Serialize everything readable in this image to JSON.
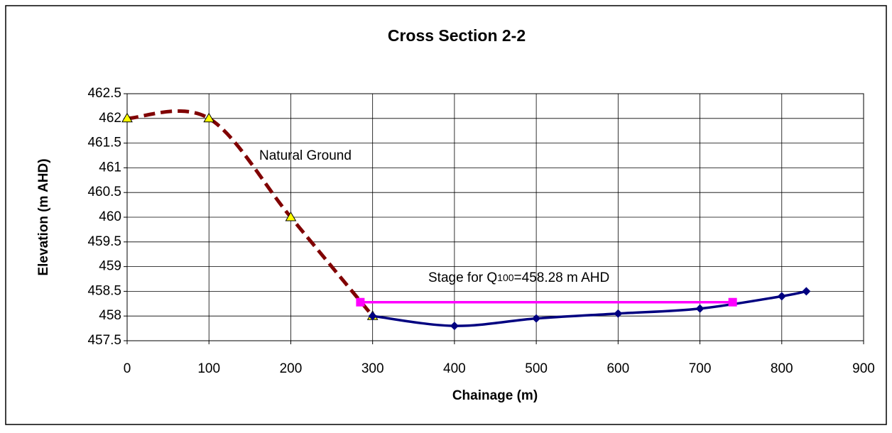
{
  "chart_data": {
    "type": "line",
    "title": "Cross Section 2-2",
    "xlabel": "Chainage (m)",
    "ylabel": "Elevation (m AHD)",
    "xlim": [
      0,
      900
    ],
    "xticks": [
      0,
      100,
      200,
      300,
      400,
      500,
      600,
      700,
      800,
      900
    ],
    "ylim": [
      457.5,
      462.5
    ],
    "yticks": [
      457.5,
      458,
      458.5,
      459,
      459.5,
      460,
      460.5,
      461,
      461.5,
      462,
      462.5
    ],
    "grid": true,
    "series": [
      {
        "color": "#800000",
        "marker_color": "#ffff00",
        "marker": "triangle",
        "dashed": true,
        "x": [
          0,
          100,
          200,
          300
        ],
        "values": [
          462,
          462,
          460,
          458
        ]
      },
      {
        "color": "#000080",
        "marker_color": "#000080",
        "marker": "diamond",
        "dashed": false,
        "x": [
          300,
          400,
          500,
          600,
          700,
          800,
          830
        ],
        "values": [
          458,
          457.8,
          457.95,
          458.05,
          458.15,
          458.4,
          458.5
        ]
      },
      {
        "color": "#ff00ff",
        "marker_color": "#ff00ff",
        "marker": "square",
        "dashed": false,
        "x": [
          285,
          740
        ],
        "values": [
          458.28,
          458.28
        ]
      }
    ],
    "annotations": {
      "ground": "Natural Ground",
      "stage": {
        "text": "Stage for Q",
        "sub": "100",
        "rest": "=458.28  m AHD"
      }
    }
  }
}
